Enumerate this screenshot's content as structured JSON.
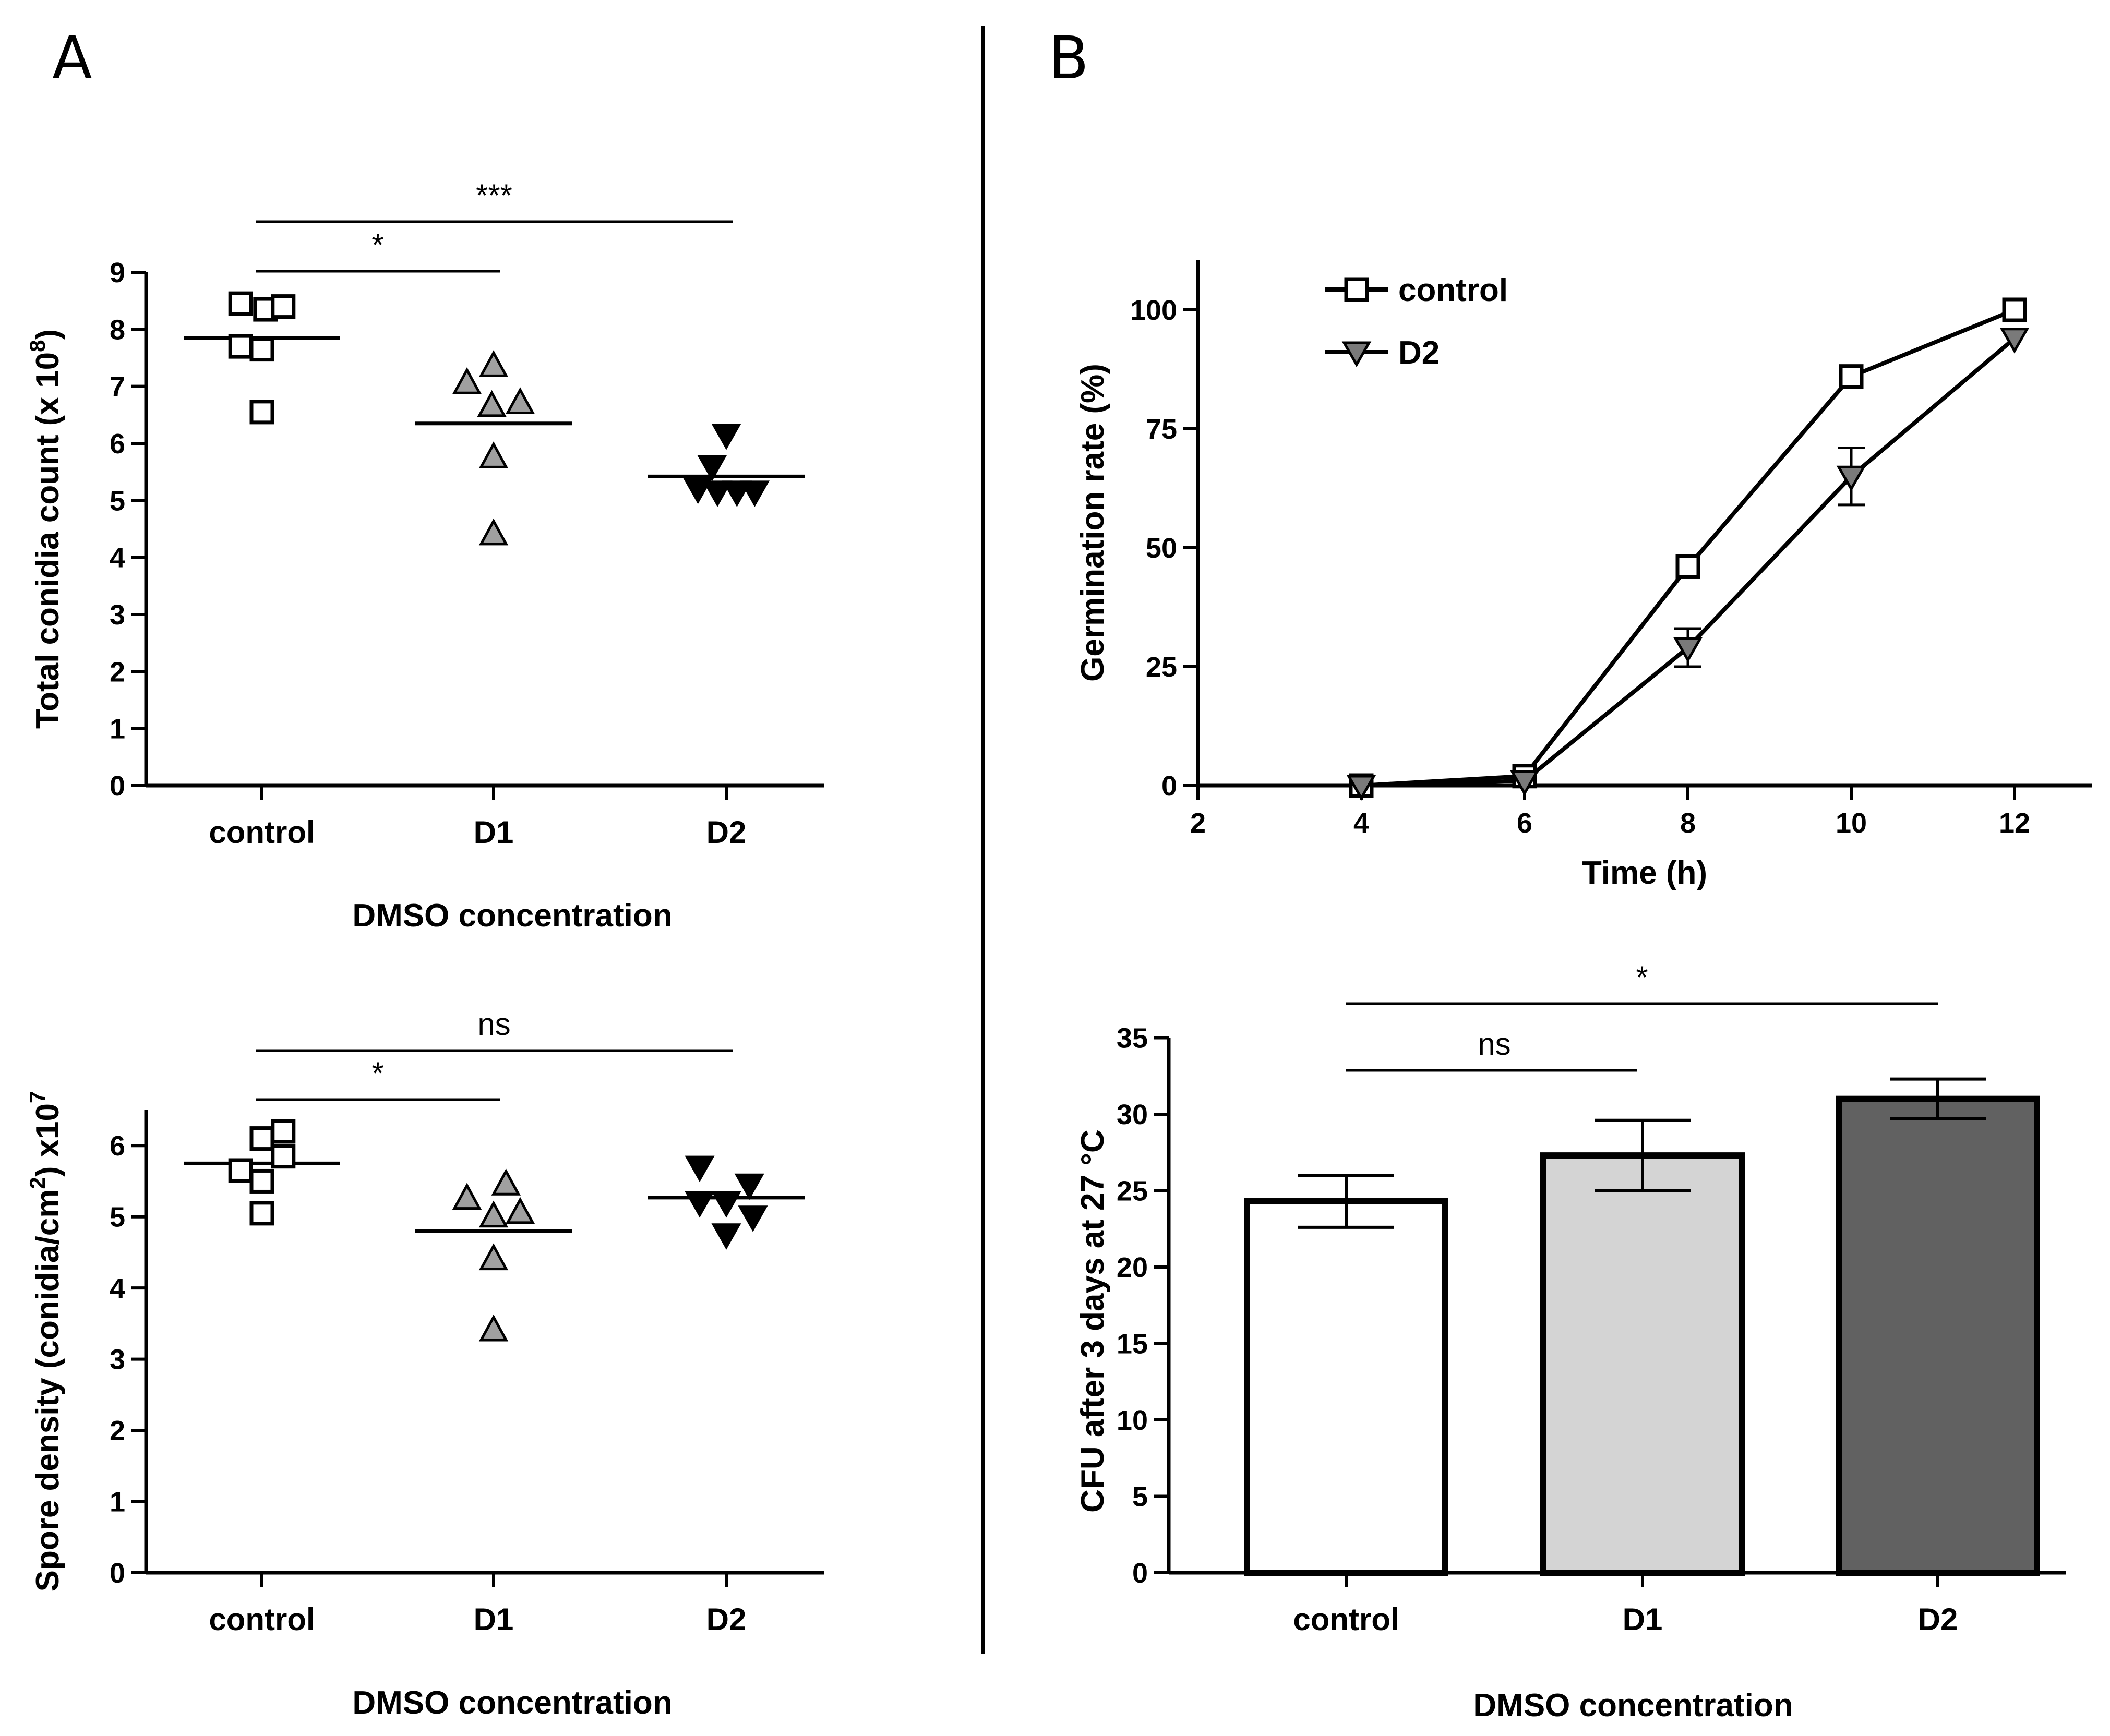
{
  "panels": {
    "a": "A",
    "b": "B"
  },
  "chart_data": [
    {
      "id": "chart1",
      "type": "scatter",
      "ylabel": "Total conidia count (x 10",
      "ylabel_sup": "8",
      "ylabel_end": ")",
      "xlabel": "DMSO concentration",
      "categories": [
        "control",
        "D1",
        "D2"
      ],
      "ylim": [
        0,
        9
      ],
      "yticks": [
        "0",
        "1",
        "2",
        "3",
        "4",
        "5",
        "6",
        "7",
        "8",
        "9"
      ],
      "groups": [
        {
          "name": "control",
          "marker": "square-open",
          "points": [
            [
              -0.12,
              8.45
            ],
            [
              0.02,
              8.35
            ],
            [
              0.12,
              8.4
            ],
            [
              -0.12,
              7.7
            ],
            [
              0.0,
              7.65
            ],
            [
              0.0,
              6.55
            ]
          ],
          "mean": 7.85
        },
        {
          "name": "D1",
          "marker": "triangle-up-gray",
          "points": [
            [
              0.0,
              7.35
            ],
            [
              -0.15,
              7.05
            ],
            [
              -0.01,
              6.65
            ],
            [
              0.15,
              6.7
            ],
            [
              0.0,
              5.75
            ],
            [
              0.0,
              4.4
            ]
          ],
          "mean": 6.35
        },
        {
          "name": "D2",
          "marker": "triangle-down-black",
          "points": [
            [
              0.0,
              6.15
            ],
            [
              -0.08,
              5.6
            ],
            [
              -0.16,
              5.2
            ],
            [
              -0.05,
              5.15
            ],
            [
              0.06,
              5.15
            ],
            [
              0.16,
              5.15
            ]
          ],
          "mean": 5.42
        }
      ],
      "significance": [
        {
          "from": 0,
          "to": 1,
          "label": "*"
        },
        {
          "from": 0,
          "to": 2,
          "label": "***"
        }
      ]
    },
    {
      "id": "chart2",
      "type": "scatter",
      "ylabel": "Spore density (conidia/cm",
      "ylabel_sup": "2",
      "ylabel_end": ") x10",
      "ylabel_sup2": "7",
      "xlabel": "DMSO concentration",
      "categories": [
        "control",
        "D1",
        "D2"
      ],
      "ylim": [
        0,
        6.5
      ],
      "yticks": [
        "0",
        "1",
        "2",
        "3",
        "4",
        "5",
        "6"
      ],
      "groups": [
        {
          "name": "control",
          "marker": "square-open",
          "points": [
            [
              0.0,
              6.1
            ],
            [
              0.12,
              6.2
            ],
            [
              -0.12,
              5.65
            ],
            [
              0.12,
              5.85
            ],
            [
              0.0,
              5.5
            ],
            [
              0.0,
              5.05
            ]
          ],
          "mean": 5.75
        },
        {
          "name": "D1",
          "marker": "triangle-up-gray",
          "points": [
            [
              -0.15,
              5.25
            ],
            [
              0.07,
              5.45
            ],
            [
              0.0,
              5.0
            ],
            [
              0.15,
              5.05
            ],
            [
              0.0,
              4.4
            ],
            [
              0.0,
              3.4
            ]
          ],
          "mean": 4.8
        },
        {
          "name": "D2",
          "marker": "triangle-down-black",
          "points": [
            [
              -0.15,
              5.7
            ],
            [
              0.13,
              5.45
            ],
            [
              -0.15,
              5.2
            ],
            [
              0.0,
              5.2
            ],
            [
              0.15,
              5.0
            ],
            [
              0.0,
              4.75
            ]
          ],
          "mean": 5.27
        }
      ],
      "significance": [
        {
          "from": 0,
          "to": 1,
          "label": "*"
        },
        {
          "from": 0,
          "to": 2,
          "label": "ns"
        }
      ]
    },
    {
      "id": "chart3",
      "type": "line",
      "ylabel": "Germination rate (%)",
      "xlabel": "Time (h)",
      "xlim": [
        2,
        13
      ],
      "ylim": [
        0,
        110
      ],
      "xticks": [
        2,
        4,
        6,
        8,
        10,
        12
      ],
      "yticks": [
        0,
        25,
        50,
        75,
        100
      ],
      "series": [
        {
          "name": "control",
          "marker": "square-open",
          "x": [
            4,
            6,
            8,
            10,
            12
          ],
          "y": [
            0,
            2,
            46,
            86,
            100
          ],
          "err": [
            0,
            0,
            0,
            0,
            0
          ]
        },
        {
          "name": "D2",
          "marker": "triangle-down-gray",
          "x": [
            4,
            6,
            8,
            10,
            12
          ],
          "y": [
            0,
            1,
            29,
            65,
            94
          ],
          "err": [
            0,
            0,
            4,
            6,
            0
          ]
        }
      ]
    },
    {
      "id": "chart4",
      "type": "bar",
      "ylabel": "CFU after 3 days at 27 °C",
      "xlabel": "DMSO concentration",
      "categories": [
        "control",
        "D1",
        "D2"
      ],
      "values": [
        24.3,
        27.3,
        31.0
      ],
      "errors": [
        1.7,
        2.3,
        1.3
      ],
      "colors": [
        "#ffffff",
        "#d4d4d4",
        "#616161"
      ],
      "ylim": [
        0,
        35
      ],
      "yticks": [
        0,
        5,
        10,
        15,
        20,
        25,
        30,
        35
      ],
      "significance": [
        {
          "from": 0,
          "to": 1,
          "label": "ns"
        },
        {
          "from": 0,
          "to": 2,
          "label": "*"
        }
      ]
    }
  ]
}
